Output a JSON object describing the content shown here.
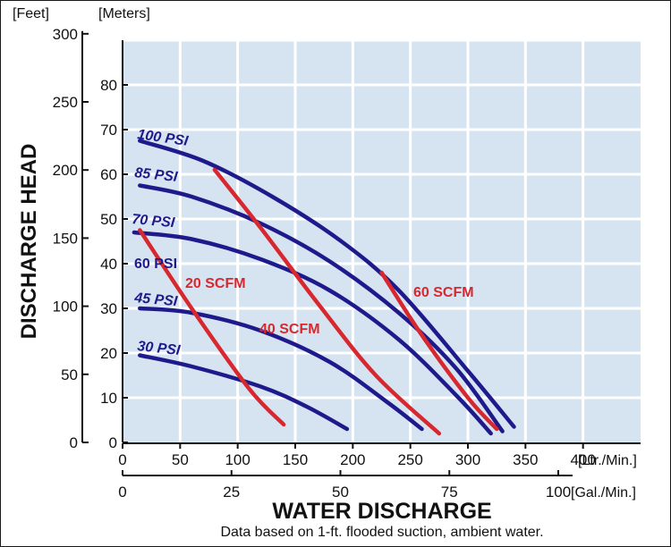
{
  "chart_data": {
    "type": "line",
    "title": "",
    "ylabel": "DISCHARGE HEAD",
    "xlabel": "WATER DISCHARGE",
    "footnote": "Data based on 1-ft. flooded suction, ambient water.",
    "y_axes": {
      "feet": {
        "unit_label": "[Feet]",
        "ticks": [
          0,
          50,
          100,
          150,
          200,
          250,
          300
        ]
      },
      "meters": {
        "unit_label": "[Meters]",
        "ticks": [
          0,
          10,
          20,
          30,
          40,
          50,
          60,
          70,
          80
        ],
        "range": [
          0,
          90
        ]
      }
    },
    "x_axes": {
      "lpm": {
        "unit_label": "[Ltr./Min.]",
        "ticks": [
          0,
          50,
          100,
          150,
          200,
          250,
          300,
          350,
          400
        ],
        "range": [
          0,
          450
        ]
      },
      "gpm": {
        "unit_label": "[Gal./Min.]",
        "ticks": [
          0,
          25,
          50,
          75,
          100
        ]
      }
    },
    "grid": true,
    "background_color": "#d6e4f1",
    "psi_color": "#1f1a8c",
    "scfm_color": "#d8282f",
    "psi_series": [
      {
        "name": "100 PSI",
        "points": [
          [
            15,
            67.5
          ],
          [
            70,
            63
          ],
          [
            130,
            55
          ],
          [
            190,
            45
          ],
          [
            240,
            34
          ],
          [
            300,
            16
          ],
          [
            340,
            3.5
          ]
        ]
      },
      {
        "name": "85 PSI",
        "points": [
          [
            15,
            57.5
          ],
          [
            60,
            55
          ],
          [
            120,
            49
          ],
          [
            180,
            40.5
          ],
          [
            240,
            29
          ],
          [
            290,
            16.5
          ],
          [
            330,
            2.5
          ]
        ]
      },
      {
        "name": "70 PSI",
        "points": [
          [
            10,
            47
          ],
          [
            60,
            45.5
          ],
          [
            120,
            41
          ],
          [
            180,
            34
          ],
          [
            240,
            23
          ],
          [
            290,
            10.5
          ],
          [
            320,
            2
          ]
        ]
      },
      {
        "name": "45 PSI",
        "points": [
          [
            15,
            30
          ],
          [
            60,
            29
          ],
          [
            120,
            25
          ],
          [
            180,
            18
          ],
          [
            230,
            9
          ],
          [
            260,
            3
          ]
        ]
      },
      {
        "name": "30 PSI",
        "points": [
          [
            15,
            19.5
          ],
          [
            60,
            17
          ],
          [
            120,
            12.5
          ],
          [
            160,
            8
          ],
          [
            195,
            3
          ]
        ]
      }
    ],
    "scfm_series": [
      {
        "name": "20 SCFM",
        "points": [
          [
            15,
            47.5
          ],
          [
            60,
            30
          ],
          [
            110,
            12
          ],
          [
            140,
            4
          ]
        ]
      },
      {
        "name": "40 SCFM",
        "points": [
          [
            80,
            61
          ],
          [
            120,
            48
          ],
          [
            170,
            31
          ],
          [
            220,
            15
          ],
          [
            275,
            2
          ]
        ]
      },
      {
        "name": "60 SCFM",
        "points": [
          [
            225,
            38
          ],
          [
            260,
            24
          ],
          [
            300,
            10
          ],
          [
            325,
            3
          ]
        ]
      }
    ],
    "extra_labels": [
      "60 PSI"
    ]
  }
}
